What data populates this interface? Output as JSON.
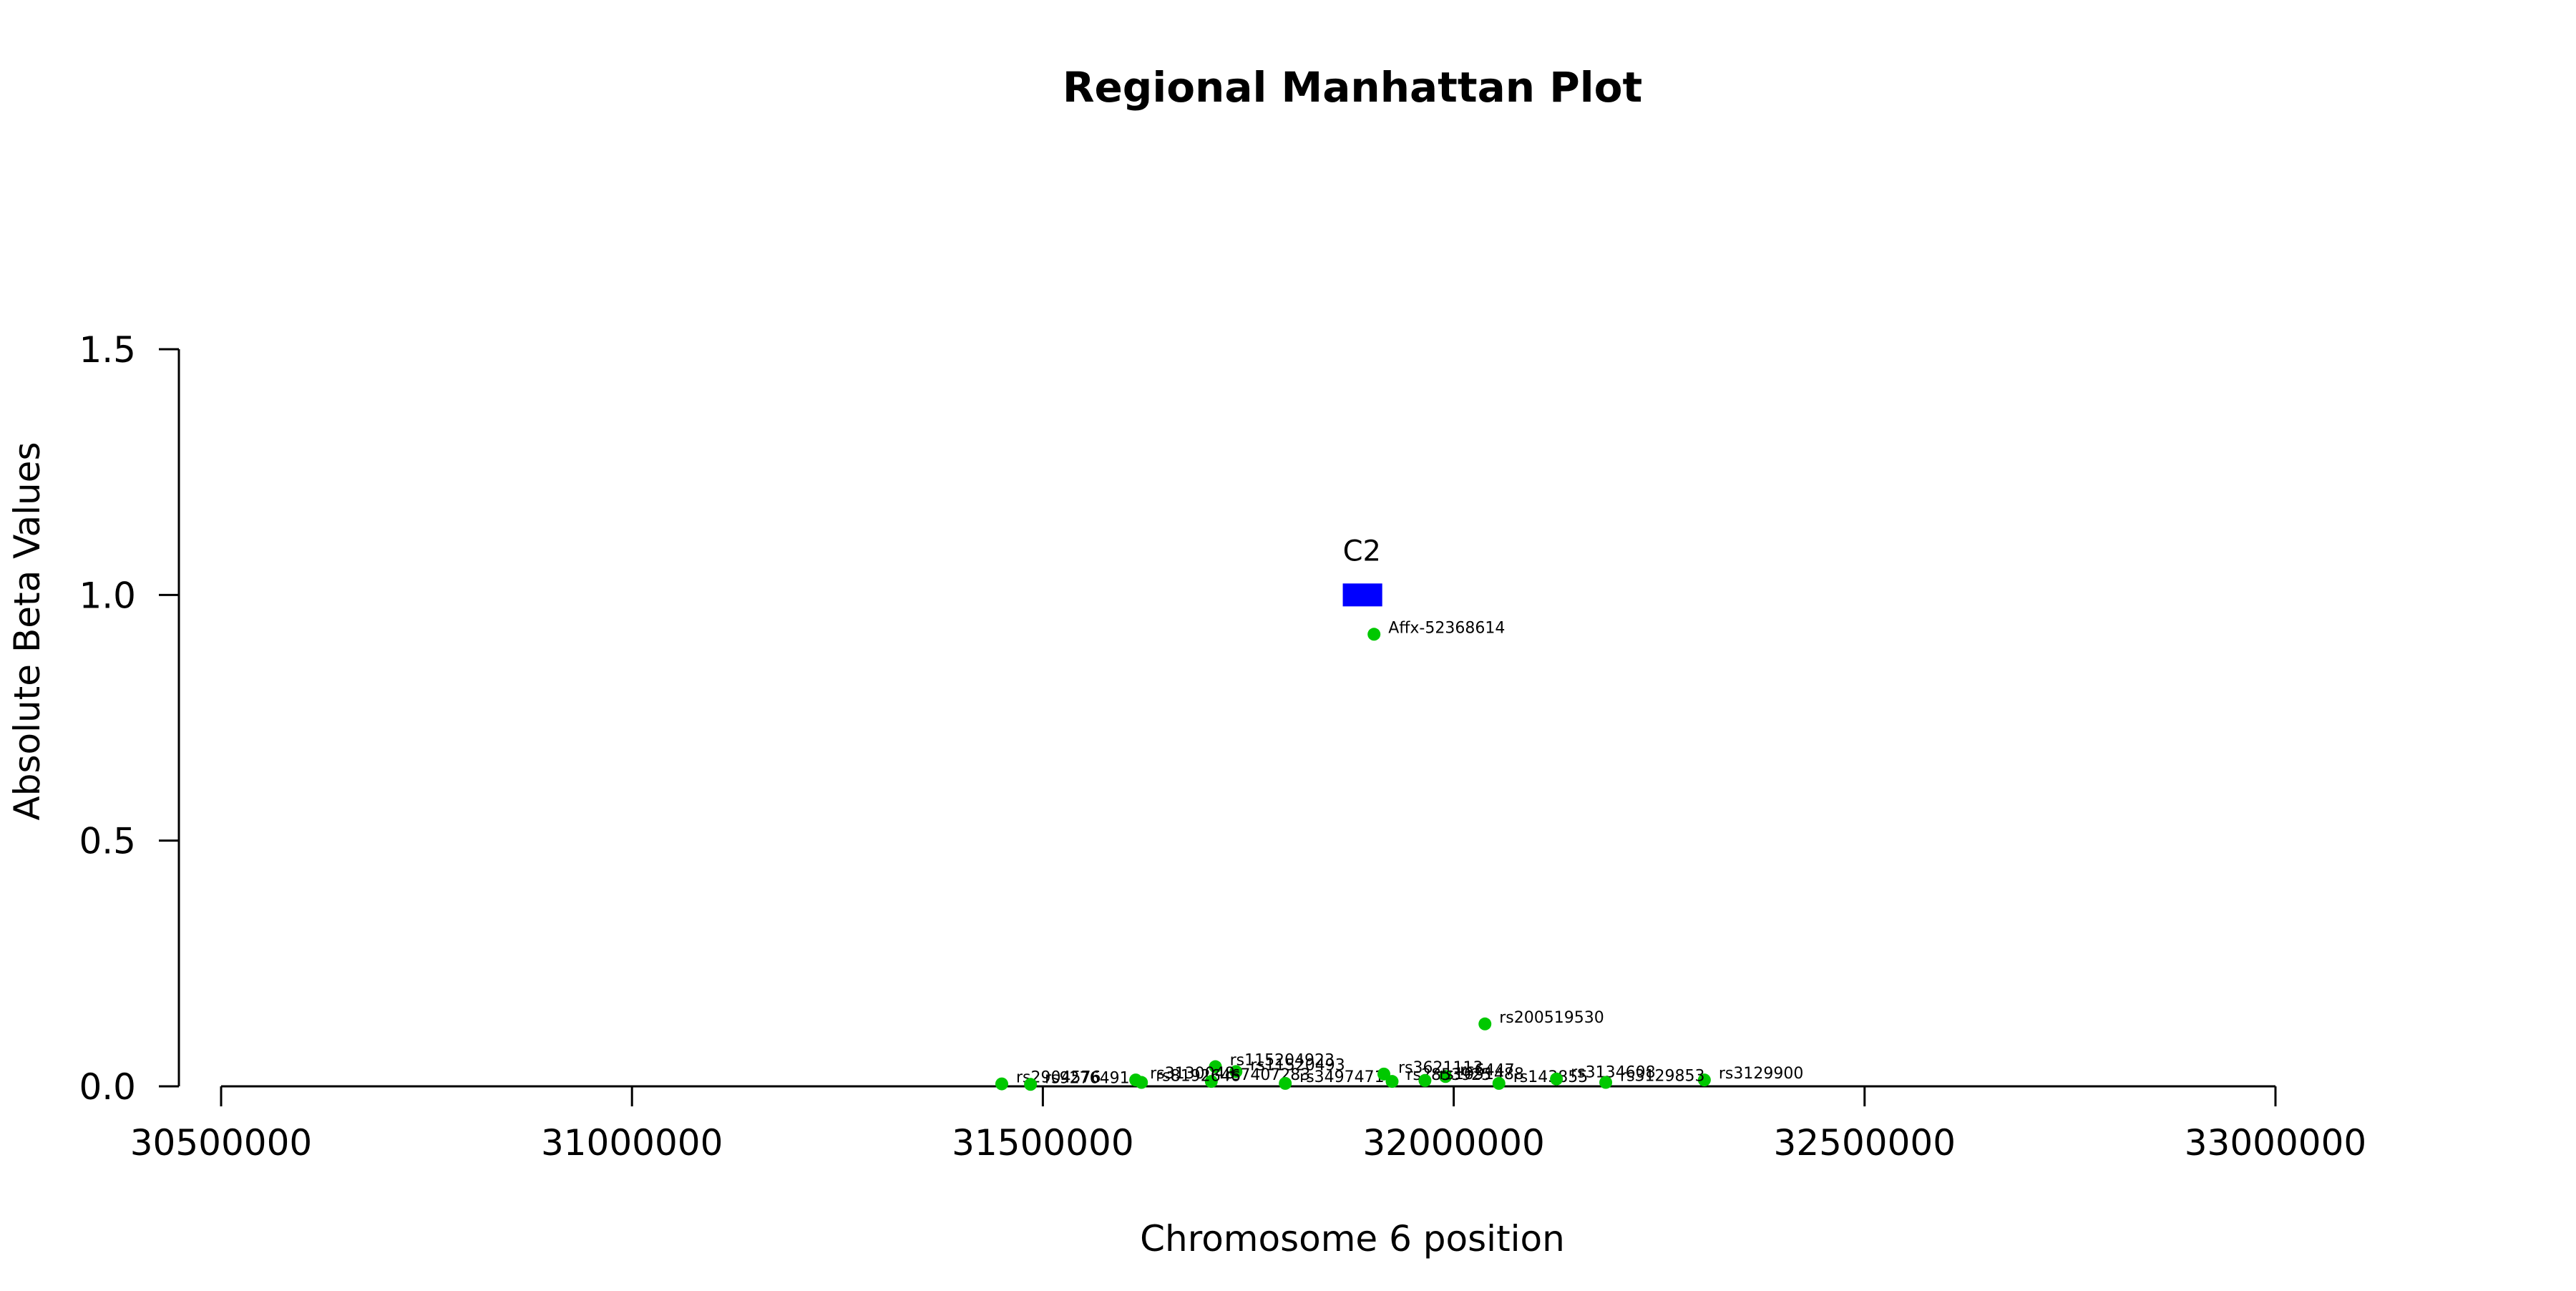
{
  "chart_data": {
    "type": "scatter",
    "title": "Regional Manhattan Plot",
    "xlabel": "Chromosome 6 position",
    "ylabel": "Absolute Beta Values",
    "xlim": [
      30450000,
      33600000
    ],
    "ylim": [
      0,
      1.5
    ],
    "x_ticks": [
      30500000,
      31000000,
      31500000,
      32000000,
      32500000,
      33000000
    ],
    "x_tick_labels": [
      "30500000",
      "31000000",
      "31500000",
      "32000000",
      "32500000",
      "33000000"
    ],
    "y_ticks": [
      0,
      0.5,
      1.0,
      1.5
    ],
    "y_tick_labels": [
      "0.0",
      "0.5",
      "1.0",
      "1.5"
    ],
    "grid": false,
    "point_color": "#00c800",
    "gene_color": "#0000ff",
    "genes": [
      {
        "name": "C2",
        "start": 31865000,
        "end": 31913000,
        "y": 1.0
      }
    ],
    "points": [
      {
        "label": "Affx-52368614",
        "x": 31903000,
        "y": 0.92
      },
      {
        "label": "rs200519530",
        "x": 32038000,
        "y": 0.127
      },
      {
        "label": "rs3129900",
        "x": 32305000,
        "y": 0.013
      },
      {
        "label": "rs115204923",
        "x": 31710000,
        "y": 0.04
      },
      {
        "label": "rs11520493",
        "x": 31735000,
        "y": 0.03
      },
      {
        "label": "rs2904576",
        "x": 31450000,
        "y": 0.005
      },
      {
        "label": "rs9276491",
        "x": 31485000,
        "y": 0.004
      },
      {
        "label": "rs3130048",
        "x": 31613000,
        "y": 0.013
      },
      {
        "label": "rs7407283",
        "x": 31705000,
        "y": 0.01
      },
      {
        "label": "rs8192646",
        "x": 31620000,
        "y": 0.008
      },
      {
        "label": "rs3497471",
        "x": 31795000,
        "y": 0.006
      },
      {
        "label": "rs3621113",
        "x": 31915000,
        "y": 0.025
      },
      {
        "label": "rs6447",
        "x": 31990000,
        "y": 0.02
      },
      {
        "label": "rs2853925",
        "x": 31925000,
        "y": 0.01
      },
      {
        "label": "rs1051488",
        "x": 31965000,
        "y": 0.012
      },
      {
        "label": "rs143855",
        "x": 32055000,
        "y": 0.006
      },
      {
        "label": "rs3134608",
        "x": 32125000,
        "y": 0.015
      },
      {
        "label": "rs3129853",
        "x": 32185000,
        "y": 0.008
      }
    ]
  }
}
